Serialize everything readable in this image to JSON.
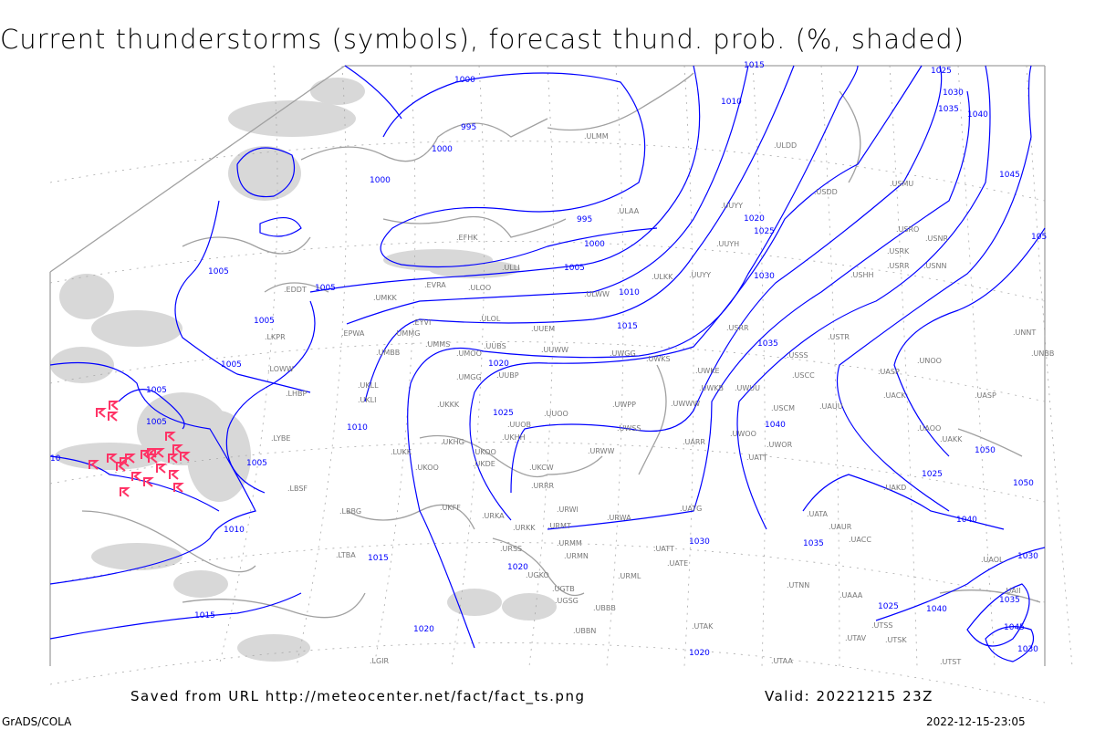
{
  "title": "Current thunderstorms (symbols), forecast thund. prob. (%, shaded)",
  "footer": {
    "source": "Saved from URL http://meteocenter.net/fact/fact_ts.png",
    "valid": "Valid: 20221215 23Z",
    "software": "GrADS/COLA",
    "timestamp": "2022-12-15-23:05"
  },
  "colors": {
    "isobar": "#0000ff",
    "coast": "#a0a0a0",
    "shading": "#d8d8d8",
    "thunderstorm": "#ff3366"
  },
  "isobar_labels": [
    "1015",
    "1010",
    "1025",
    "1030",
    "1035",
    "1040",
    "1000",
    "995",
    "1000",
    "1000",
    "995",
    "1000",
    "1005",
    "1010",
    "1015",
    "1020",
    "1025",
    "1030",
    "1035",
    "1040",
    "1045",
    "1050",
    "1005",
    "1005",
    "1005",
    "1005",
    "1005",
    "1005",
    "1010",
    "1010",
    "1015",
    "1015",
    "1020",
    "1020",
    "1025",
    "1020",
    "1025",
    "1030",
    "1035",
    "1040",
    "1050",
    "1030",
    "1035",
    "1040",
    "1045",
    "1030",
    "1025",
    "1005",
    "10",
    "1020",
    "105"
  ],
  "stations": [
    "ULMM",
    "ULAA",
    "EFHK",
    "ULLI",
    "ULWW",
    "ULDD",
    "UUYY",
    "USDD",
    "UUYH",
    "ULKK",
    "UUYY",
    "USMU",
    "USRO",
    "USRK",
    "USNR",
    "USRR",
    "USNN",
    "USHH",
    "USRR",
    "USTR",
    "USSS",
    "USCC",
    "UNOO",
    "UASP",
    "UACK",
    "UASP",
    "USCM",
    "UAUU",
    "UAOO",
    "UAKK",
    "UNNT",
    "UNBB",
    "UWKS",
    "UWKE",
    "UWKB",
    "UWUU",
    "UWWW",
    "UWOO",
    "UWOR",
    "UATT",
    "UARR",
    "UWSS",
    "URWW",
    "EDDT",
    "UMKK",
    "EVRA",
    "ULOO",
    "ULOL",
    "EYVI",
    "UMMG",
    "EPWA",
    "UMBB",
    "UMMS",
    "UMOO",
    "UUBS",
    "UUEM",
    "UUWW",
    "UWGG",
    "LKPR",
    "LOWW",
    "UKLL",
    "LHBP",
    "UKLI",
    "UMGG",
    "UUBP",
    "UKKK",
    "UWPP",
    "UUOO",
    "UUOB",
    "LYBE",
    "UKHH",
    "UKHG",
    "UKOO",
    "UKDE",
    "LUKK",
    "UKOO",
    "UKCW",
    "URRR",
    "LBSF",
    "LBBG",
    "UKFF",
    "URKA",
    "URWI",
    "URKK",
    "URMT",
    "URWA",
    "UATG",
    "URMM",
    "URSS",
    "UATT",
    "URMN",
    "LTBA",
    "UGKO",
    "UATE",
    "UGTB",
    "URML",
    "UGSG",
    "UBBB",
    "UBBN",
    "UTAK",
    "UTNN",
    "UAAA",
    "UTSS",
    "UTAV",
    "UTSK",
    "UTST",
    "UAII",
    "UTAA",
    "UAUR",
    "UACC",
    "UAKD",
    "UATA",
    "UAOL",
    "LGIR"
  ],
  "thunderstorm_count": 22
}
